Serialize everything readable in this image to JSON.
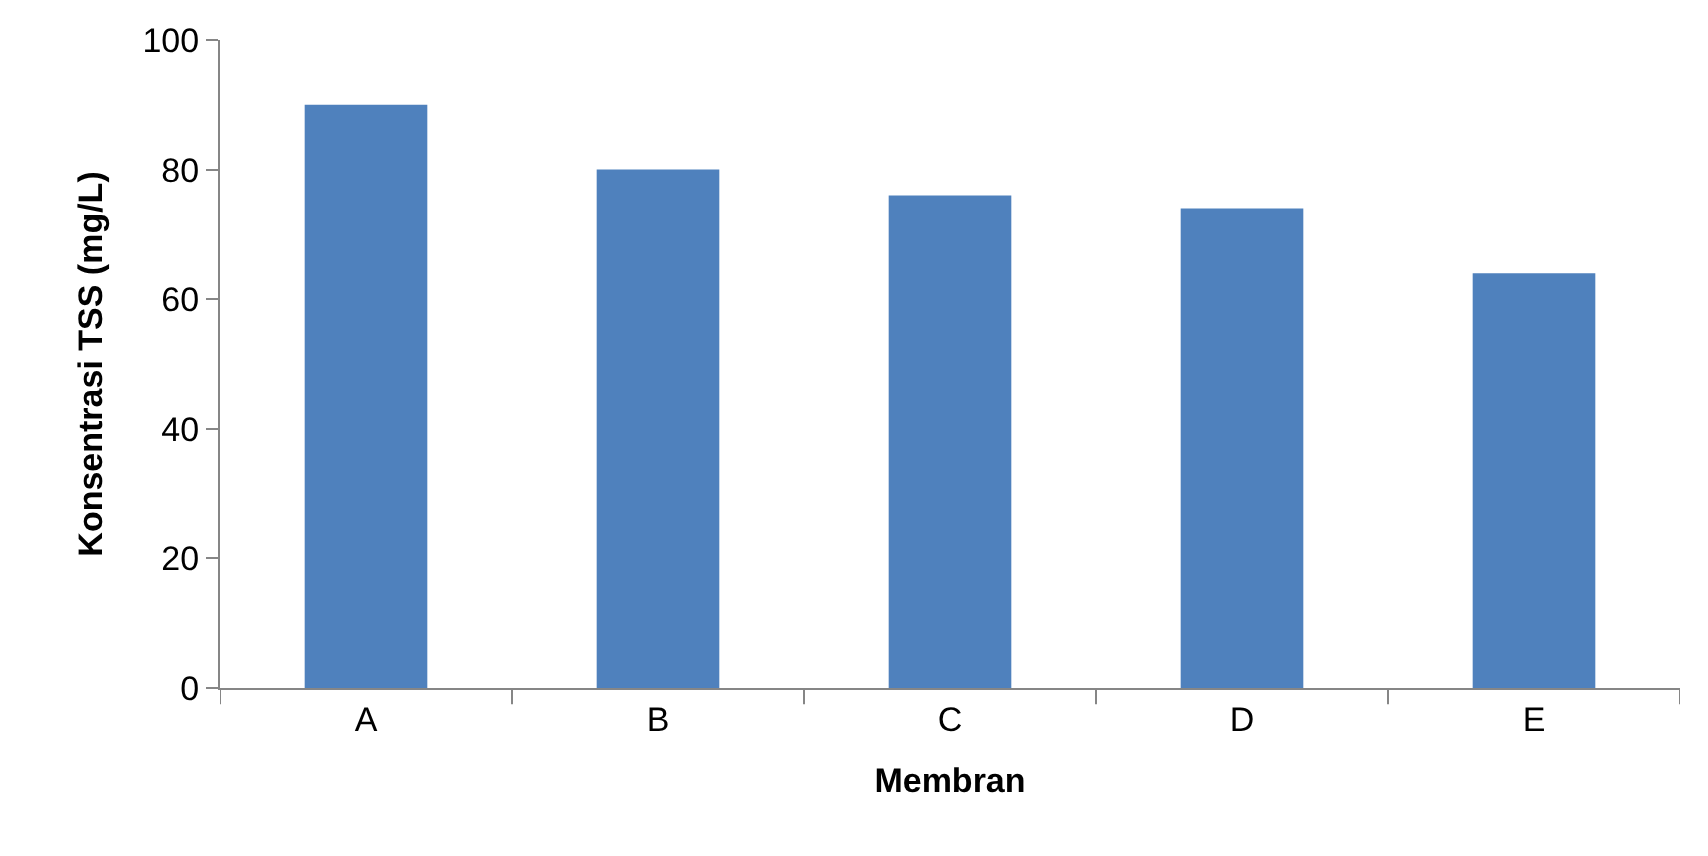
{
  "chart_data": {
    "type": "bar",
    "xlabel": "Membran",
    "ylabel": "Konsentrasi TSS (mg/L)",
    "categories": [
      "A",
      "B",
      "C",
      "D",
      "E"
    ],
    "series": [
      {
        "color": "#4f81bd",
        "values": [
          90,
          80,
          76,
          74,
          64
        ]
      }
    ],
    "ylim": [
      0,
      100
    ],
    "yticks": [
      0,
      20,
      40,
      60,
      80,
      100
    ]
  }
}
